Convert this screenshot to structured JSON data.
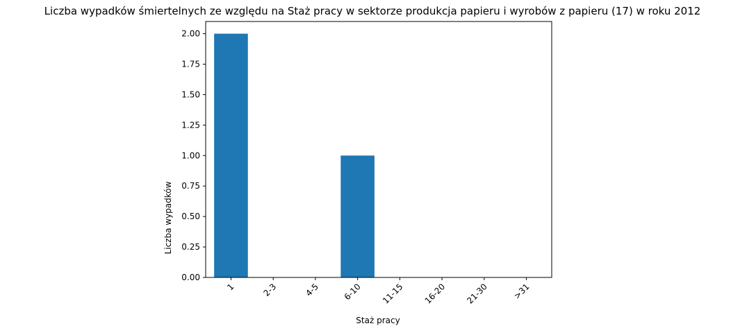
{
  "chart_data": {
    "type": "bar",
    "title": "Liczba wypadków śmiertelnych ze względu na Staż pracy w sektorze produkcja papieru i wyrobów z papieru  (17)   w roku 2012",
    "xlabel": "Staż pracy",
    "ylabel": "Liczba wypadków",
    "categories": [
      "1",
      "2-3",
      "4-5",
      "6-10",
      "11-15",
      "16-20",
      "21-30",
      ">31"
    ],
    "values": [
      2,
      0,
      0,
      1,
      0,
      0,
      0,
      0
    ],
    "ylim": [
      0,
      2.1
    ],
    "yticks": [
      "0.00",
      "0.25",
      "0.50",
      "0.75",
      "1.00",
      "1.25",
      "1.50",
      "1.75",
      "2.00"
    ],
    "bar_color": "#1f77b4",
    "grid": false,
    "legend": "none"
  }
}
